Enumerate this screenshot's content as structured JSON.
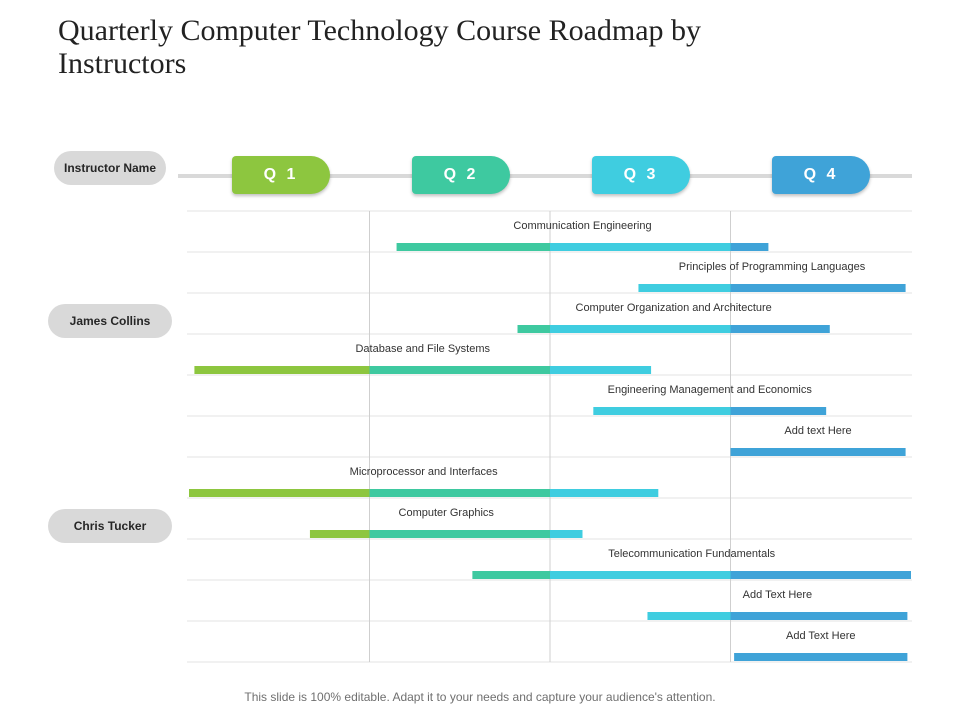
{
  "title": "Quarterly Computer Technology Course Roadmap by Instructors",
  "footer": "This slide is 100% editable. Adapt it to your needs and capture your audience's attention.",
  "header_label": "Instructor Name",
  "instructors": [
    "James Collins",
    "Chris Tucker"
  ],
  "colors": {
    "q1": "#8dc63f",
    "q2": "#3ec9a0",
    "q3": "#3fcde0",
    "q4": "#3fa3d8",
    "pill": "#d9d9d9",
    "grid": "#e3e3e3",
    "divider": "#cfcfcf"
  },
  "chart_data": {
    "type": "gantt",
    "title": "Quarterly Computer Technology Course Roadmap by Instructors",
    "quarters": [
      "Q 1",
      "Q 2",
      "Q 3",
      "Q 4"
    ],
    "xlim": [
      0,
      4
    ],
    "tasks": [
      {
        "label": "Communication Engineering",
        "start": 1.15,
        "end": 3.21
      },
      {
        "label": "Principles of Programming Languages",
        "start": 2.49,
        "end": 3.97
      },
      {
        "label": "Computer Organization and Architecture",
        "start": 1.82,
        "end": 3.55
      },
      {
        "label": "Database and File Systems",
        "start": 0.03,
        "end": 2.56
      },
      {
        "label": "Engineering Management and Economics",
        "start": 2.24,
        "end": 3.53
      },
      {
        "label": "Add text Here",
        "start": 3.0,
        "end": 3.97
      },
      {
        "label": "Microprocessor and Interfaces",
        "start": 0.0,
        "end": 2.6
      },
      {
        "label": "Computer Graphics",
        "start": 0.67,
        "end": 2.18
      },
      {
        "label": "Telecommunication Fundamentals",
        "start": 1.57,
        "end": 4.0
      },
      {
        "label": "Add Text Here",
        "start": 2.54,
        "end": 3.98
      },
      {
        "label": "Add Text Here",
        "start": 3.02,
        "end": 3.98
      }
    ]
  }
}
